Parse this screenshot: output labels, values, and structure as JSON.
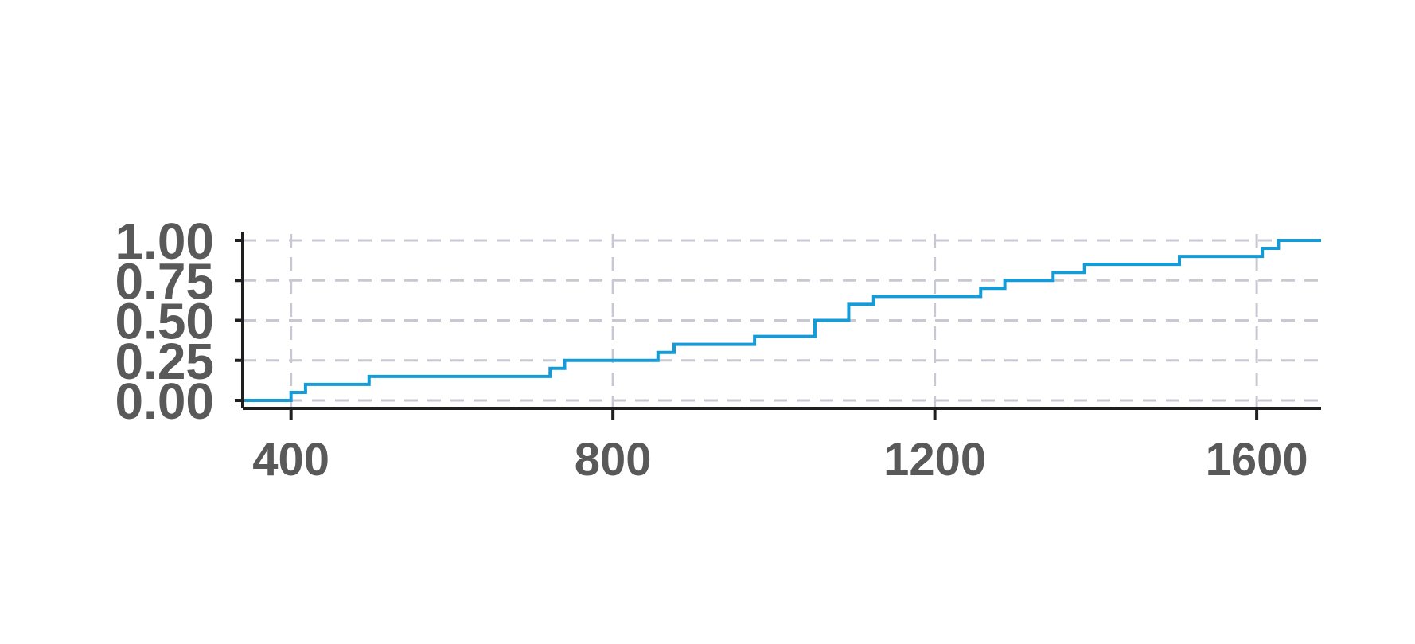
{
  "chart_data": {
    "type": "line",
    "step": true,
    "title": "",
    "xlabel": "",
    "ylabel": "",
    "xlim": [
      340,
      1680
    ],
    "ylim": [
      0,
      1
    ],
    "x_ticks": [
      400,
      800,
      1200,
      1600
    ],
    "x_tick_labels": [
      "400",
      "800",
      "1200",
      "1600"
    ],
    "y_ticks": [
      0,
      0.25,
      0.5,
      0.75,
      1
    ],
    "y_tick_labels": [
      "0.00",
      "0.25",
      "0.50",
      "0.75",
      "1.00"
    ],
    "grid": true,
    "legend": false,
    "series": [
      {
        "color": "#159bd7",
        "points": [
          {
            "x": 340,
            "y": 0
          },
          {
            "x": 400,
            "y": 0.05
          },
          {
            "x": 418,
            "y": 0.1
          },
          {
            "x": 497,
            "y": 0.15
          },
          {
            "x": 722,
            "y": 0.2
          },
          {
            "x": 740,
            "y": 0.25
          },
          {
            "x": 856,
            "y": 0.3
          },
          {
            "x": 876,
            "y": 0.35
          },
          {
            "x": 976,
            "y": 0.4
          },
          {
            "x": 1051,
            "y": 0.5
          },
          {
            "x": 1093,
            "y": 0.6
          },
          {
            "x": 1124,
            "y": 0.65
          },
          {
            "x": 1257,
            "y": 0.7
          },
          {
            "x": 1287,
            "y": 0.75
          },
          {
            "x": 1347,
            "y": 0.8
          },
          {
            "x": 1386,
            "y": 0.85
          },
          {
            "x": 1504,
            "y": 0.9
          },
          {
            "x": 1607,
            "y": 0.95
          },
          {
            "x": 1627,
            "y": 1.0
          },
          {
            "x": 1680,
            "y": 1.0
          }
        ]
      }
    ]
  },
  "colors": {
    "line": "#159bd7",
    "grid": "#c8c8d2",
    "axis": "#1f1f1f",
    "tick_text": "#595959"
  }
}
